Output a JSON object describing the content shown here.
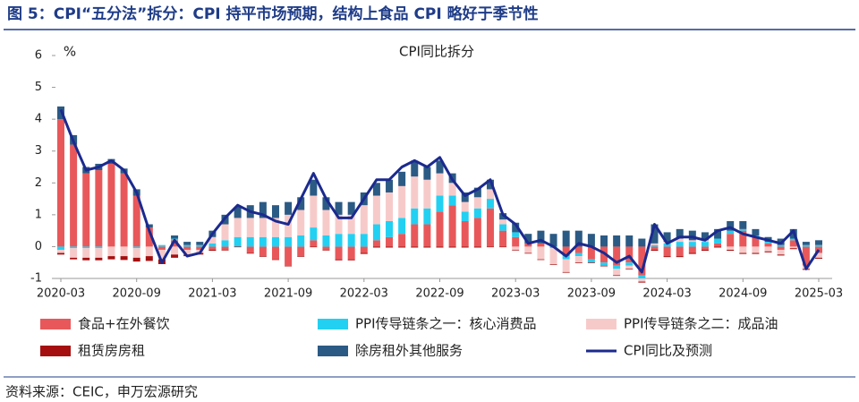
{
  "header": {
    "title": "图 5：CPI“五分法”拆分：CPI 持平市场预期，结构上食品 CPI 略好于季节性"
  },
  "footer": {
    "source": "资料来源：CEIC，申万宏源研究"
  },
  "chart_data": {
    "type": "bar",
    "stacked": true,
    "title": "CPI同比拆分",
    "y_label": "%",
    "ylim": [
      -1,
      6
    ],
    "yticks": [
      -1,
      0,
      1,
      2,
      3,
      4,
      5,
      6
    ],
    "categories": [
      "2020-03",
      null,
      null,
      null,
      null,
      null,
      "2020-09",
      null,
      null,
      null,
      null,
      null,
      "2021-03",
      null,
      null,
      null,
      null,
      null,
      "2021-09",
      null,
      null,
      null,
      null,
      null,
      "2022-03",
      null,
      null,
      null,
      null,
      null,
      "2022-09",
      null,
      null,
      null,
      null,
      null,
      "2023-03",
      null,
      null,
      null,
      null,
      null,
      "2023-09",
      null,
      null,
      null,
      null,
      null,
      "2024-03",
      null,
      null,
      null,
      null,
      null,
      "2024-09",
      null,
      null,
      null,
      null,
      null,
      "2025-03"
    ],
    "series": [
      {
        "name": "食品+在外餐饮",
        "color": "#e8585a",
        "values": [
          4.0,
          3.2,
          2.3,
          2.4,
          2.6,
          2.3,
          1.6,
          0.6,
          -0.1,
          0.2,
          -0.1,
          -0.1,
          -0.1,
          -0.1,
          0.0,
          -0.2,
          -0.3,
          -0.4,
          -0.6,
          -0.3,
          0.2,
          -0.1,
          -0.4,
          -0.4,
          -0.2,
          0.2,
          0.3,
          0.4,
          0.7,
          0.7,
          1.1,
          1.3,
          0.8,
          0.9,
          1.2,
          0.5,
          0.3,
          0.1,
          0.1,
          0.0,
          -0.3,
          -0.2,
          -0.4,
          -0.5,
          -0.6,
          -0.5,
          -0.9,
          -0.1,
          -0.3,
          -0.3,
          -0.2,
          -0.1,
          0.1,
          0.4,
          0.5,
          0.3,
          0.1,
          -0.1,
          0.2,
          -0.6,
          -0.2
        ]
      },
      {
        "name": "PPI传导链条之一：核心消费品",
        "color": "#22d0f2",
        "values": [
          -0.1,
          -0.05,
          -0.05,
          -0.05,
          0,
          0,
          -0.05,
          0,
          0.05,
          0.05,
          0.05,
          0.05,
          0.1,
          0.2,
          0.3,
          0.3,
          0.3,
          0.3,
          0.3,
          0.35,
          0.4,
          0.35,
          0.4,
          0.4,
          0.4,
          0.5,
          0.5,
          0.5,
          0.5,
          0.5,
          0.5,
          0.3,
          0.3,
          0.3,
          0.3,
          0.2,
          0.15,
          0,
          0,
          -0.05,
          -0.1,
          -0.1,
          -0.1,
          -0.1,
          -0.1,
          -0.1,
          -0.1,
          0.05,
          0.1,
          0.15,
          0.15,
          0.15,
          0.15,
          0.1,
          0.05,
          0.05,
          0.05,
          0.05,
          0.05,
          0.05,
          0.05
        ]
      },
      {
        "name": "PPI传导链条之二：成品油",
        "color": "#f7caca",
        "values": [
          -0.1,
          -0.3,
          -0.3,
          -0.3,
          -0.3,
          -0.3,
          -0.3,
          -0.3,
          -0.3,
          -0.25,
          -0.15,
          -0.1,
          0.2,
          0.5,
          0.6,
          0.6,
          0.6,
          0.6,
          0.7,
          0.8,
          1.0,
          0.8,
          0.6,
          0.6,
          0.9,
          0.9,
          0.9,
          1.0,
          1.0,
          0.9,
          0.7,
          0.4,
          0.3,
          0.35,
          0.3,
          0.15,
          -0.1,
          -0.2,
          -0.4,
          -0.5,
          -0.4,
          -0.2,
          0,
          0,
          -0.2,
          -0.1,
          -0.1,
          0.05,
          0.05,
          0.1,
          0.05,
          0.05,
          0,
          -0.1,
          -0.2,
          -0.2,
          -0.15,
          -0.15,
          -0.05,
          -0.1,
          -0.15
        ]
      },
      {
        "name": "租赁房房租",
        "color": "#a50f10",
        "values": [
          -0.05,
          -0.05,
          -0.08,
          -0.08,
          -0.1,
          -0.12,
          -0.12,
          -0.15,
          -0.15,
          -0.1,
          -0.05,
          -0.05,
          -0.03,
          -0.02,
          -0.02,
          -0.02,
          -0.02,
          -0.02,
          -0.02,
          -0.02,
          -0.02,
          -0.02,
          -0.03,
          -0.03,
          -0.03,
          -0.03,
          -0.03,
          -0.03,
          -0.03,
          -0.03,
          -0.03,
          -0.03,
          -0.03,
          -0.03,
          -0.02,
          -0.02,
          -0.02,
          -0.02,
          -0.02,
          -0.02,
          -0.02,
          -0.02,
          -0.02,
          -0.02,
          -0.02,
          -0.02,
          -0.03,
          -0.03,
          -0.03,
          -0.03,
          -0.03,
          -0.03,
          -0.03,
          -0.03,
          -0.03,
          -0.03,
          -0.03,
          -0.03,
          -0.03,
          -0.03,
          -0.03
        ]
      },
      {
        "name": "除房租外其他服务",
        "color": "#2b5a84",
        "values": [
          0.4,
          0.3,
          0.2,
          0.2,
          0.15,
          0.15,
          0.2,
          0.1,
          0.0,
          0.1,
          0.1,
          0.1,
          0.2,
          0.3,
          0.35,
          0.4,
          0.5,
          0.4,
          0.4,
          0.4,
          0.5,
          0.4,
          0.4,
          0.4,
          0.4,
          0.4,
          0.4,
          0.45,
          0.5,
          0.4,
          0.4,
          0.3,
          0.3,
          0.3,
          0.3,
          0.2,
          0.3,
          0.3,
          0.4,
          0.4,
          0.5,
          0.5,
          0.4,
          0.35,
          0.35,
          0.35,
          0.25,
          0.6,
          0.3,
          0.3,
          0.3,
          0.25,
          0.3,
          0.3,
          0.25,
          0.2,
          0.15,
          0.2,
          0.3,
          0.1,
          0.15
        ]
      },
      {
        "name": "CPI同比及预测",
        "color": "#1b2a8f",
        "type": "line",
        "values": [
          4.3,
          3.3,
          2.4,
          2.5,
          2.7,
          2.4,
          1.7,
          0.5,
          -0.5,
          0.2,
          -0.3,
          -0.2,
          0.4,
          0.9,
          1.3,
          1.1,
          1.0,
          0.8,
          0.7,
          1.5,
          2.3,
          1.5,
          0.9,
          0.9,
          1.5,
          2.1,
          2.1,
          2.5,
          2.7,
          2.5,
          2.8,
          2.1,
          1.6,
          1.8,
          2.1,
          1.0,
          0.7,
          0.1,
          0.2,
          0.0,
          -0.3,
          0.1,
          0.0,
          -0.2,
          -0.5,
          -0.3,
          -0.8,
          0.7,
          0.1,
          0.3,
          0.3,
          0.2,
          0.5,
          0.6,
          0.4,
          0.3,
          0.2,
          0.1,
          0.5,
          -0.7,
          -0.1
        ]
      }
    ]
  }
}
